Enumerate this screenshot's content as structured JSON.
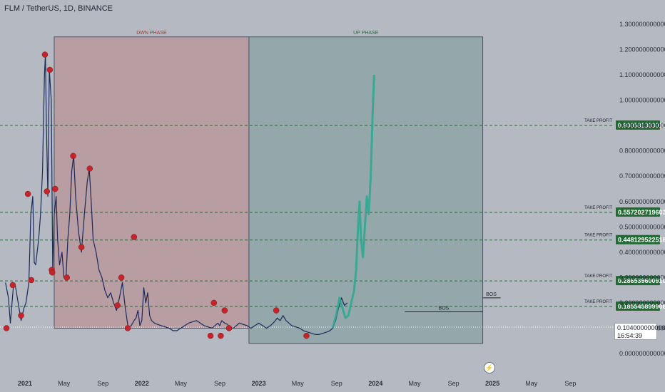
{
  "header": {
    "title": "FLM / TetherUS, 1D, BINANCE"
  },
  "price_badge": {
    "price": "0.1040000000000",
    "countdown": "16:54:39"
  },
  "colors": {
    "background": "#b4b9c2",
    "down_zone": "#b89da2",
    "up_zone": "#94a7aa",
    "candle": "#1a2a5c",
    "projection": "#2aa98f",
    "pivot": "#c7232b",
    "take_profit_tag": "#1f6b33",
    "grid_line": "#2b6a3e"
  },
  "icons": {
    "zap": "lightning-bolt-icon"
  },
  "chart_data": {
    "type": "line",
    "title": "FLM / TetherUS, 1D, BINANCE",
    "xlabel": "",
    "ylabel": "",
    "ylim": [
      0,
      1.3
    ],
    "grid": false,
    "time_range": [
      "2020-11",
      "2025-09"
    ],
    "x_ticks": [
      "2021",
      "May",
      "Sep",
      "2022",
      "May",
      "Sep",
      "2023",
      "May",
      "Sep",
      "2024",
      "May",
      "Sep",
      "2025",
      "May",
      "Sep"
    ],
    "y_ticks": [
      "1.3000000000000",
      "1.2000000000000",
      "1.1000000000000",
      "1.0000000000000",
      "0.9000000000000",
      "0.8000000000000",
      "0.7000000000000",
      "0.6000000000000",
      "0.5000000000000",
      "0.4000000000000",
      "0.3000000000000",
      "0.2000000000000",
      "0.1000000000000",
      "0.0000000000000"
    ],
    "y_tick_values": [
      1.3,
      1.2,
      1.1,
      1.0,
      0.9,
      0.8,
      0.7,
      0.6,
      0.5,
      0.4,
      0.3,
      0.2,
      0.1,
      0.0
    ],
    "zones": [
      {
        "label": "DWN PHASE",
        "start": "2021-04",
        "end": "2022-12",
        "y_top": 1.25,
        "y_bottom": 0.1
      },
      {
        "label": "UP PHASE",
        "start": "2022-12",
        "end": "2024-12",
        "y_top": 1.25,
        "y_bottom": 0.04
      }
    ],
    "take_profit": [
      {
        "label": "TAKE PROFIT",
        "value": 0.900581303018,
        "value_text": "0.900581303018"
      },
      {
        "label": "TAKE PROFIT",
        "value": 0.557202719603,
        "value_text": "0.557202719603"
      },
      {
        "label": "TAKE PROFIT",
        "value": 0.448129522518,
        "value_text": "0.448129522518"
      },
      {
        "label": "TAKE PROFIT",
        "value": 0.28653960091,
        "value_text": "0.286539600910"
      },
      {
        "label": "TAKE PROFIT",
        "value": 0.185545899906,
        "value_text": "0.185545899906"
      }
    ],
    "current_price": 0.104,
    "annotations": [
      {
        "label": "BOS",
        "x": "2024-12",
        "y": 0.22
      },
      {
        "label": "BOS",
        "start": "2024-04",
        "end": "2024-12",
        "y": 0.165
      }
    ],
    "price_series": [
      [
        0.0,
        0.28
      ],
      [
        0.3,
        0.22
      ],
      [
        0.5,
        0.12
      ],
      [
        0.8,
        0.26
      ],
      [
        1.0,
        0.27
      ],
      [
        1.3,
        0.2
      ],
      [
        1.6,
        0.13
      ],
      [
        1.9,
        0.18
      ],
      [
        2.1,
        0.2
      ],
      [
        2.4,
        0.28
      ],
      [
        2.6,
        0.55
      ],
      [
        2.8,
        0.62
      ],
      [
        2.95,
        0.36
      ],
      [
        3.1,
        0.35
      ],
      [
        3.4,
        0.45
      ],
      [
        3.6,
        0.55
      ],
      [
        3.8,
        0.72
      ],
      [
        4.0,
        1.1
      ],
      [
        4.1,
        1.18
      ],
      [
        4.2,
        0.9
      ],
      [
        4.35,
        0.62
      ],
      [
        4.5,
        1.12
      ],
      [
        4.7,
        1.0
      ],
      [
        4.85,
        0.32
      ],
      [
        5.0,
        0.55
      ],
      [
        5.2,
        0.62
      ],
      [
        5.35,
        0.45
      ],
      [
        5.55,
        0.35
      ],
      [
        5.8,
        0.4
      ],
      [
        6.0,
        0.3
      ],
      [
        6.2,
        0.29
      ],
      [
        6.4,
        0.45
      ],
      [
        6.6,
        0.55
      ],
      [
        6.8,
        0.72
      ],
      [
        7.0,
        0.78
      ],
      [
        7.2,
        0.62
      ],
      [
        7.5,
        0.48
      ],
      [
        7.8,
        0.4
      ],
      [
        8.1,
        0.55
      ],
      [
        8.4,
        0.68
      ],
      [
        8.6,
        0.73
      ],
      [
        8.8,
        0.6
      ],
      [
        9.0,
        0.45
      ],
      [
        9.3,
        0.4
      ],
      [
        9.6,
        0.33
      ],
      [
        9.9,
        0.3
      ],
      [
        10.2,
        0.25
      ],
      [
        10.5,
        0.22
      ],
      [
        10.8,
        0.24
      ],
      [
        11.1,
        0.2
      ],
      [
        11.4,
        0.17
      ],
      [
        11.7,
        0.22
      ],
      [
        12.0,
        0.28
      ],
      [
        12.3,
        0.18
      ],
      [
        12.6,
        0.1
      ],
      [
        12.9,
        0.11
      ],
      [
        13.2,
        0.13
      ],
      [
        13.4,
        0.14
      ],
      [
        13.6,
        0.17
      ],
      [
        13.8,
        0.11
      ],
      [
        14.0,
        0.13
      ],
      [
        14.2,
        0.26
      ],
      [
        14.4,
        0.2
      ],
      [
        14.6,
        0.24
      ],
      [
        14.8,
        0.15
      ],
      [
        15.0,
        0.13
      ],
      [
        15.3,
        0.12
      ],
      [
        15.6,
        0.115
      ],
      [
        16.0,
        0.11
      ],
      [
        16.4,
        0.105
      ],
      [
        16.8,
        0.1
      ],
      [
        17.2,
        0.09
      ],
      [
        17.6,
        0.09
      ],
      [
        18.0,
        0.1
      ],
      [
        18.4,
        0.11
      ],
      [
        18.8,
        0.12
      ],
      [
        19.2,
        0.125
      ],
      [
        19.6,
        0.13
      ],
      [
        20.0,
        0.12
      ],
      [
        20.4,
        0.11
      ],
      [
        20.8,
        0.105
      ],
      [
        21.2,
        0.1
      ],
      [
        21.5,
        0.11
      ],
      [
        21.8,
        0.12
      ],
      [
        22.0,
        0.11
      ],
      [
        22.2,
        0.13
      ],
      [
        22.5,
        0.12
      ],
      [
        22.8,
        0.115
      ],
      [
        23.1,
        0.1
      ],
      [
        23.4,
        0.1
      ],
      [
        23.7,
        0.11
      ],
      [
        24.0,
        0.12
      ],
      [
        24.4,
        0.115
      ],
      [
        24.8,
        0.11
      ],
      [
        25.2,
        0.1
      ],
      [
        25.6,
        0.11
      ],
      [
        26.0,
        0.12
      ],
      [
        26.4,
        0.11
      ],
      [
        26.8,
        0.1
      ],
      [
        27.2,
        0.11
      ],
      [
        27.6,
        0.125
      ],
      [
        27.9,
        0.14
      ],
      [
        28.2,
        0.13
      ],
      [
        28.5,
        0.15
      ],
      [
        28.8,
        0.13
      ],
      [
        29.1,
        0.12
      ],
      [
        29.4,
        0.11
      ],
      [
        29.8,
        0.105
      ],
      [
        30.2,
        0.1
      ],
      [
        30.6,
        0.09
      ],
      [
        31.0,
        0.085
      ],
      [
        31.4,
        0.08
      ],
      [
        31.8,
        0.075
      ],
      [
        32.2,
        0.075
      ],
      [
        32.6,
        0.08
      ],
      [
        33.0,
        0.085
      ],
      [
        33.3,
        0.09
      ],
      [
        33.6,
        0.1
      ],
      [
        33.9,
        0.13
      ],
      [
        34.2,
        0.18
      ],
      [
        34.5,
        0.22
      ],
      [
        34.8,
        0.19
      ],
      [
        35.1,
        0.2
      ]
    ],
    "projection_series": [
      [
        33.6,
        0.1
      ],
      [
        34.0,
        0.16
      ],
      [
        34.3,
        0.22
      ],
      [
        34.6,
        0.18
      ],
      [
        34.9,
        0.14
      ],
      [
        35.2,
        0.15
      ],
      [
        35.5,
        0.2
      ],
      [
        35.8,
        0.25
      ],
      [
        36.0,
        0.33
      ],
      [
        36.2,
        0.5
      ],
      [
        36.35,
        0.6
      ],
      [
        36.5,
        0.45
      ],
      [
        36.7,
        0.38
      ],
      [
        36.9,
        0.5
      ],
      [
        37.1,
        0.62
      ],
      [
        37.3,
        0.55
      ],
      [
        37.5,
        0.7
      ],
      [
        37.7,
        0.95
      ],
      [
        37.85,
        1.1
      ]
    ],
    "pivots": [
      [
        0.1,
        0.1
      ],
      [
        0.75,
        0.27
      ],
      [
        1.6,
        0.15
      ],
      [
        2.3,
        0.63
      ],
      [
        2.65,
        0.29
      ],
      [
        4.05,
        1.18
      ],
      [
        4.25,
        0.64
      ],
      [
        4.55,
        1.12
      ],
      [
        4.75,
        0.33
      ],
      [
        4.8,
        0.32
      ],
      [
        5.1,
        0.65
      ],
      [
        6.3,
        0.3
      ],
      [
        6.95,
        0.78
      ],
      [
        7.8,
        0.42
      ],
      [
        8.65,
        0.73
      ],
      [
        11.9,
        0.3
      ],
      [
        11.5,
        0.19
      ],
      [
        13.2,
        0.46
      ],
      [
        12.55,
        0.1
      ],
      [
        21.4,
        0.2
      ],
      [
        21.05,
        0.07
      ],
      [
        22.1,
        0.07
      ],
      [
        22.5,
        0.17
      ],
      [
        22.95,
        0.1
      ],
      [
        27.8,
        0.17
      ],
      [
        30.9,
        0.07
      ]
    ]
  }
}
